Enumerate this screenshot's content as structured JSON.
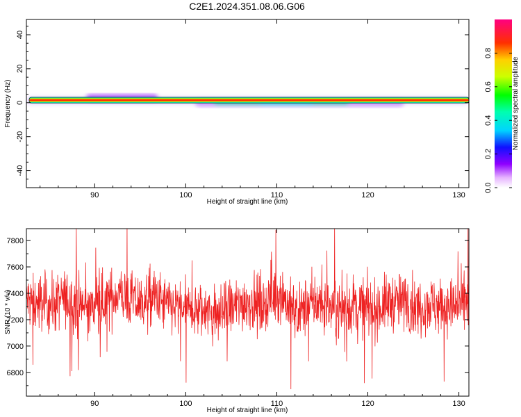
{
  "title": "C2E1.2024.351.08.06.G06",
  "chart_data": [
    {
      "type": "heatmap",
      "xlabel": "Height of straight line (km)",
      "ylabel": "Frequency (Hz)",
      "xlim": [
        82.5,
        131.1
      ],
      "ylim": [
        -50,
        49
      ],
      "xticks": [
        90,
        100,
        110,
        120,
        130
      ],
      "yticks": [
        40,
        20,
        0,
        -20,
        -40
      ],
      "colorbar": {
        "label": "Normalized spectral amplitude",
        "range": [
          0,
          1
        ],
        "ticks": [
          "0.0",
          "0.2",
          "0.4",
          "0.6",
          "0.8"
        ],
        "colormap": "rainbow (magenta-blue-cyan-green-yellow-red-magenta)"
      },
      "ridge": {
        "frequency_hz": 1.5,
        "height_km": [
          82.5,
          131.1
        ]
      },
      "grid": false
    },
    {
      "type": "line",
      "xlabel": "Height of straight line (km)",
      "ylabel": "SNR (10 * v/v)",
      "xlim": [
        82.5,
        131.1
      ],
      "ylim": [
        6620,
        7890
      ],
      "xticks": [
        90,
        100,
        110,
        120,
        130
      ],
      "yticks": [
        6800,
        7000,
        7200,
        7400,
        7600,
        7800
      ],
      "color": "#ee2222",
      "grid": false,
      "x": [
        82.5,
        83.5,
        84.5,
        85.5,
        86.5,
        87.5,
        88.5,
        89.5,
        90.5,
        91.5,
        92.5,
        93.5,
        94.5,
        95.5,
        96.5,
        97.5,
        98.5,
        99.5,
        100.5,
        101.5,
        102.5,
        103.5,
        104.5,
        105.5,
        106.5,
        107.5,
        108.5,
        109.5,
        110.5,
        111.5,
        112.5,
        113.5,
        114.5,
        115.5,
        116.5,
        117.5,
        118.5,
        119.5,
        120.5,
        121.5,
        122.5,
        123.5,
        124.5,
        125.5,
        126.5,
        127.5,
        128.5,
        129.5,
        130.5,
        131.1
      ],
      "y": [
        7350,
        7320,
        7330,
        7310,
        7360,
        7340,
        7300,
        7280,
        7320,
        7350,
        7400,
        7360,
        7330,
        7340,
        7380,
        7320,
        7300,
        7270,
        7280,
        7260,
        7250,
        7230,
        7280,
        7300,
        7340,
        7330,
        7310,
        7380,
        7400,
        7280,
        7250,
        7320,
        7330,
        7300,
        7280,
        7270,
        7320,
        7300,
        7270,
        7300,
        7340,
        7330,
        7340,
        7280,
        7330,
        7300,
        7310,
        7290,
        7300,
        7350
      ]
    }
  ]
}
